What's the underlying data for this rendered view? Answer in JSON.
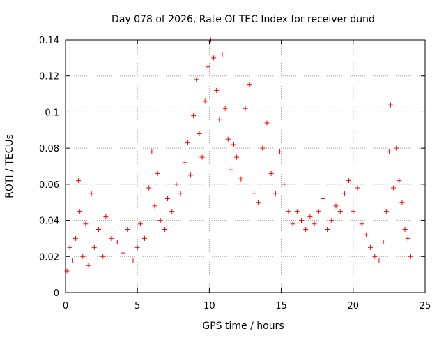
{
  "chart_data": {
    "type": "scatter",
    "title": "Day 078 of 2026, Rate Of TEC Index for receiver dund",
    "xlabel": "GPS time / hours",
    "ylabel": "ROTI / TECUs",
    "xlim": [
      0,
      25
    ],
    "ylim": [
      0,
      0.14
    ],
    "xticks": [
      "0",
      "5",
      "10",
      "15",
      "20",
      "25"
    ],
    "yticks": [
      "0",
      "0.02",
      "0.04",
      "0.06",
      "0.08",
      "0.1",
      "0.12",
      "0.14"
    ],
    "grid": true,
    "marker": "+",
    "color": "#ff0000",
    "series": [
      {
        "points": [
          [
            0.1,
            0.012
          ],
          [
            0.3,
            0.025
          ],
          [
            0.5,
            0.018
          ],
          [
            0.7,
            0.03
          ],
          [
            0.9,
            0.062
          ],
          [
            1.0,
            0.045
          ],
          [
            1.2,
            0.02
          ],
          [
            1.4,
            0.038
          ],
          [
            1.6,
            0.015
          ],
          [
            1.8,
            0.055
          ],
          [
            2.0,
            0.025
          ],
          [
            2.3,
            0.035
          ],
          [
            2.6,
            0.02
          ],
          [
            2.8,
            0.042
          ],
          [
            3.2,
            0.03
          ],
          [
            3.6,
            0.028
          ],
          [
            4.0,
            0.022
          ],
          [
            4.3,
            0.035
          ],
          [
            4.7,
            0.018
          ],
          [
            5.0,
            0.025
          ],
          [
            5.2,
            0.038
          ],
          [
            5.5,
            0.03
          ],
          [
            5.8,
            0.058
          ],
          [
            6.0,
            0.078
          ],
          [
            6.2,
            0.048
          ],
          [
            6.4,
            0.066
          ],
          [
            6.6,
            0.04
          ],
          [
            6.9,
            0.035
          ],
          [
            7.1,
            0.052
          ],
          [
            7.4,
            0.045
          ],
          [
            7.7,
            0.06
          ],
          [
            8.0,
            0.055
          ],
          [
            8.3,
            0.072
          ],
          [
            8.5,
            0.083
          ],
          [
            8.7,
            0.065
          ],
          [
            8.9,
            0.098
          ],
          [
            9.1,
            0.118
          ],
          [
            9.3,
            0.088
          ],
          [
            9.5,
            0.075
          ],
          [
            9.7,
            0.106
          ],
          [
            9.9,
            0.125
          ],
          [
            10.1,
            0.14
          ],
          [
            10.3,
            0.13
          ],
          [
            10.5,
            0.112
          ],
          [
            10.7,
            0.096
          ],
          [
            10.9,
            0.132
          ],
          [
            11.1,
            0.102
          ],
          [
            11.3,
            0.085
          ],
          [
            11.5,
            0.068
          ],
          [
            11.7,
            0.082
          ],
          [
            11.9,
            0.075
          ],
          [
            12.2,
            0.063
          ],
          [
            12.5,
            0.102
          ],
          [
            12.8,
            0.115
          ],
          [
            13.1,
            0.055
          ],
          [
            13.4,
            0.05
          ],
          [
            13.7,
            0.08
          ],
          [
            14.0,
            0.094
          ],
          [
            14.3,
            0.066
          ],
          [
            14.6,
            0.055
          ],
          [
            14.9,
            0.078
          ],
          [
            15.2,
            0.06
          ],
          [
            15.5,
            0.045
          ],
          [
            15.8,
            0.038
          ],
          [
            16.1,
            0.045
          ],
          [
            16.4,
            0.04
          ],
          [
            16.7,
            0.035
          ],
          [
            17.0,
            0.042
          ],
          [
            17.3,
            0.038
          ],
          [
            17.6,
            0.045
          ],
          [
            17.9,
            0.052
          ],
          [
            18.2,
            0.035
          ],
          [
            18.5,
            0.04
          ],
          [
            18.8,
            0.048
          ],
          [
            19.1,
            0.045
          ],
          [
            19.4,
            0.055
          ],
          [
            19.7,
            0.062
          ],
          [
            20.0,
            0.045
          ],
          [
            20.3,
            0.058
          ],
          [
            20.6,
            0.038
          ],
          [
            20.9,
            0.032
          ],
          [
            21.2,
            0.025
          ],
          [
            21.5,
            0.02
          ],
          [
            21.8,
            0.018
          ],
          [
            22.1,
            0.028
          ],
          [
            22.3,
            0.045
          ],
          [
            22.5,
            0.078
          ],
          [
            22.6,
            0.104
          ],
          [
            22.8,
            0.058
          ],
          [
            23.0,
            0.08
          ],
          [
            23.2,
            0.062
          ],
          [
            23.4,
            0.05
          ],
          [
            23.6,
            0.035
          ],
          [
            23.8,
            0.03
          ],
          [
            24.0,
            0.02
          ]
        ]
      }
    ]
  }
}
